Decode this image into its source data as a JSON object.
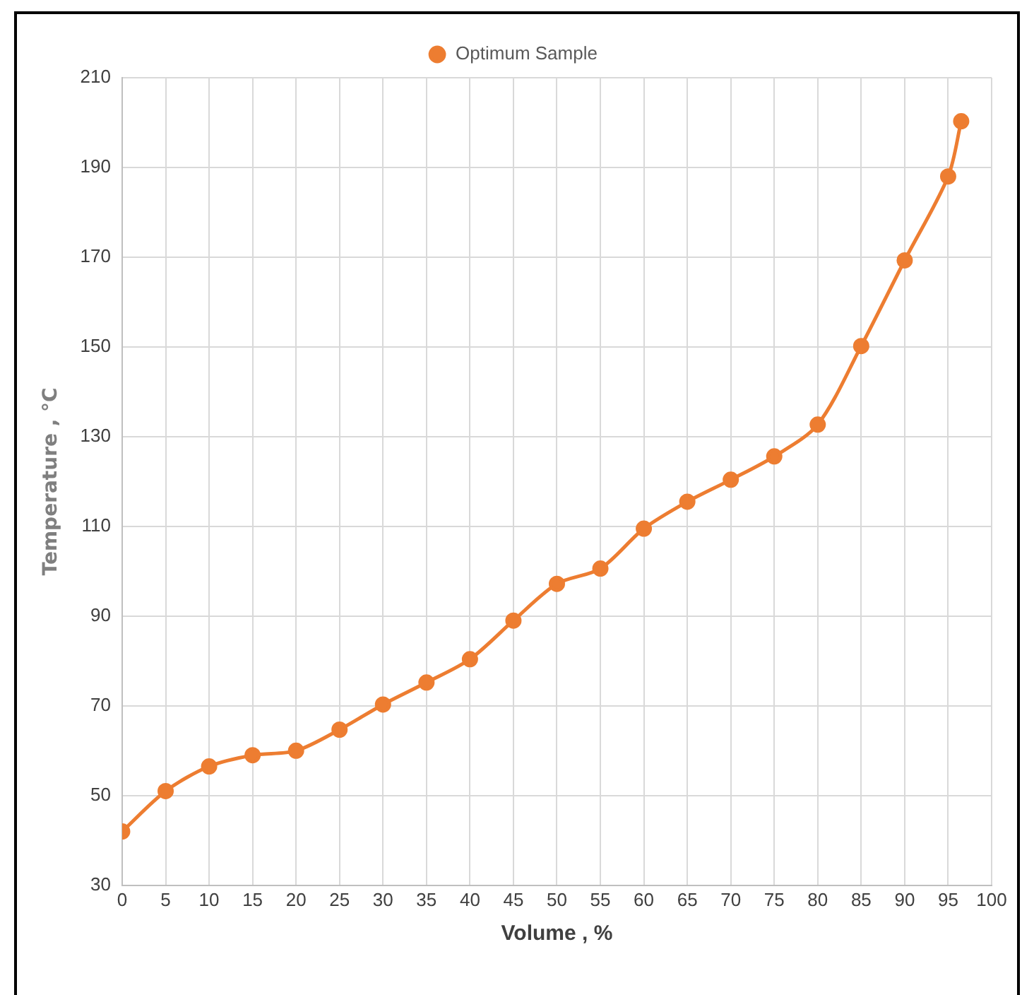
{
  "chart_data": {
    "type": "line",
    "xlabel": "Volume , %",
    "ylabel": "Temperature , °C",
    "series": [
      {
        "name": "Optimum Sample",
        "color": "#ed7d31",
        "x": [
          0,
          5,
          10,
          15,
          20,
          25,
          30,
          35,
          40,
          45,
          50,
          55,
          60,
          65,
          70,
          75,
          80,
          85,
          90,
          95,
          96.5
        ],
        "values": [
          42,
          51,
          56.5,
          59,
          60,
          64.7,
          70.3,
          75.2,
          80.4,
          89,
          97.2,
          100.6,
          109.5,
          115.5,
          120.4,
          125.6,
          132.7,
          150.2,
          169.3,
          188,
          200.3
        ]
      }
    ],
    "xlim": [
      0,
      100
    ],
    "xticks": [
      0,
      5,
      10,
      15,
      20,
      25,
      30,
      35,
      40,
      45,
      50,
      55,
      60,
      65,
      70,
      75,
      80,
      85,
      90,
      95,
      100
    ],
    "ylim": [
      30,
      210
    ],
    "yticks": [
      30,
      50,
      70,
      90,
      110,
      130,
      150,
      170,
      190,
      210
    ],
    "grid": true,
    "legend": "top",
    "marker": "circle",
    "line_style": "solid"
  }
}
